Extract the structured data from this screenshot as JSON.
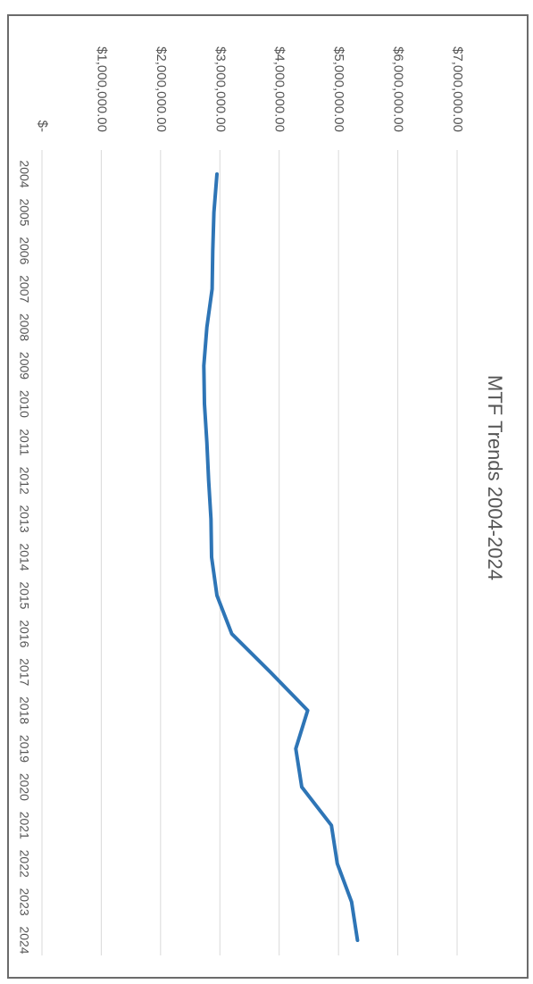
{
  "chart_data": {
    "type": "line",
    "title": "MTF Trends 2004-2024",
    "xlabel": "",
    "ylabel": "",
    "categories": [
      "2004",
      "2005",
      "2006",
      "2007",
      "2008",
      "2009",
      "2010",
      "2011",
      "2012",
      "2013",
      "2014",
      "2015",
      "2016",
      "2017",
      "2018",
      "2019",
      "2020",
      "2021",
      "2022",
      "2023",
      "2024"
    ],
    "series": [
      {
        "color": "#2e75b6",
        "values": [
          2950000,
          2900000,
          2880000,
          2870000,
          2780000,
          2730000,
          2740000,
          2780000,
          2810000,
          2850000,
          2860000,
          2950000,
          3200000,
          3850000,
          4480000,
          4280000,
          4380000,
          4880000,
          4980000,
          5220000,
          5320000
        ]
      }
    ],
    "y_ticks": [
      "$-",
      "$1,000,000.00",
      "$2,000,000.00",
      "$3,000,000.00",
      "$4,000,000.00",
      "$5,000,000.00",
      "$6,000,000.00",
      "$7,000,000.00"
    ],
    "ylim": [
      0,
      7000000
    ],
    "orientation": "rotated 90 degrees clockwise",
    "grid": true,
    "gridline_color": "#d9d9d9",
    "legend": "none"
  }
}
